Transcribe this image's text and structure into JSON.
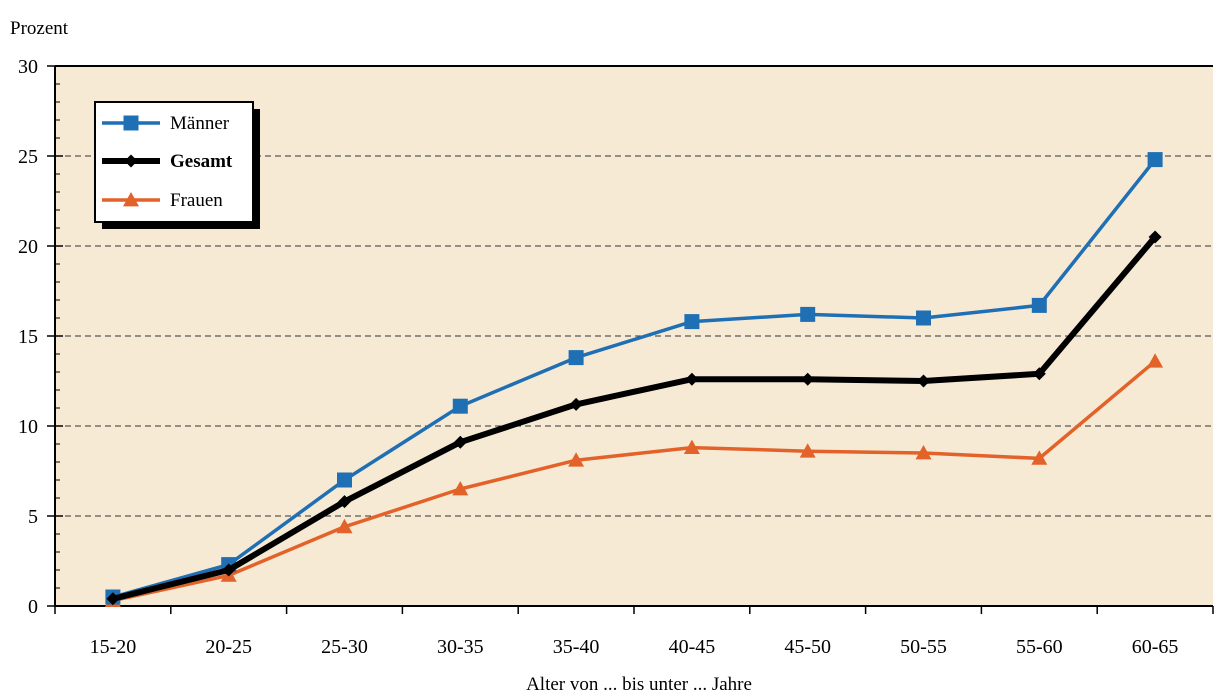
{
  "chart_data": {
    "type": "line",
    "title": "",
    "ylabel": "Prozent",
    "xlabel": "Alter von ... bis unter ... Jahre",
    "categories": [
      "15-20",
      "20-25",
      "25-30",
      "30-35",
      "35-40",
      "40-45",
      "45-50",
      "50-55",
      "55-60",
      "60-65"
    ],
    "ylim": [
      0,
      30
    ],
    "yticks": [
      "0",
      "5",
      "10",
      "15",
      "20",
      "25",
      "30"
    ],
    "grid": "horizontal dashed",
    "legend_position": "top-left",
    "series": [
      {
        "name": "Männer",
        "color": "#1f6fb4",
        "marker": "square",
        "bold": false,
        "values": [
          0.5,
          2.3,
          7.0,
          11.1,
          13.8,
          15.8,
          16.2,
          16.0,
          16.7,
          24.8
        ]
      },
      {
        "name": "Gesamt",
        "color": "#000000",
        "marker": "diamond",
        "bold": true,
        "values": [
          0.4,
          2.0,
          5.8,
          9.1,
          11.2,
          12.6,
          12.6,
          12.5,
          12.9,
          20.5
        ]
      },
      {
        "name": "Frauen",
        "color": "#e3622a",
        "marker": "triangle",
        "bold": false,
        "values": [
          0.3,
          1.7,
          4.4,
          6.5,
          8.1,
          8.8,
          8.6,
          8.5,
          8.2,
          13.6
        ]
      }
    ],
    "plot_background": "#f6ead4"
  }
}
